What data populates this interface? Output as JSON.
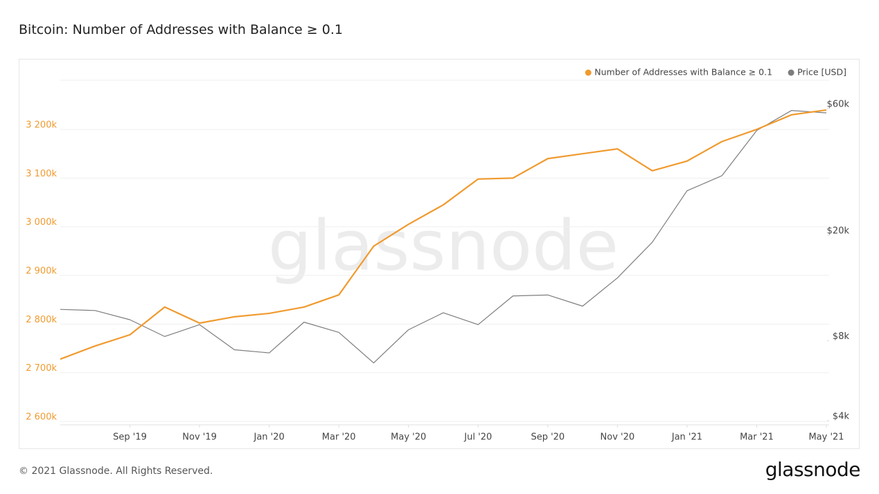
{
  "chart_data": {
    "type": "line",
    "title": "Bitcoin: Number of Addresses with Balance ≥ 0.1",
    "watermark": "glassnode",
    "footer": "© 2021 Glassnode. All Rights Reserved.",
    "logo": "glassnode",
    "x": [
      "2019-07",
      "2019-08",
      "2019-09",
      "2019-10",
      "2019-11",
      "2019-12",
      "2020-01",
      "2020-02",
      "2020-03",
      "2020-04",
      "2020-05",
      "2020-06",
      "2020-07",
      "2020-08",
      "2020-09",
      "2020-10",
      "2020-11",
      "2020-12",
      "2021-01",
      "2021-02",
      "2021-03",
      "2021-04",
      "2021-05"
    ],
    "xlim": [
      "2019-07",
      "2021-05"
    ],
    "xticks": [
      {
        "value": "2019-09",
        "label": "Sep '19"
      },
      {
        "value": "2019-11",
        "label": "Nov '19"
      },
      {
        "value": "2020-01",
        "label": "Jan '20"
      },
      {
        "value": "2020-03",
        "label": "Mar '20"
      },
      {
        "value": "2020-05",
        "label": "May '20"
      },
      {
        "value": "2020-07",
        "label": "Jul '20"
      },
      {
        "value": "2020-09",
        "label": "Sep '20"
      },
      {
        "value": "2020-11",
        "label": "Nov '20"
      },
      {
        "value": "2021-01",
        "label": "Jan '21"
      },
      {
        "value": "2021-03",
        "label": "Mar '21"
      },
      {
        "value": "2021-05",
        "label": "May '21"
      }
    ],
    "series": [
      {
        "name": "Number of Addresses with Balance ≥ 0.1",
        "color": "#f09a2e",
        "values": [
          2728000,
          2755000,
          2778000,
          2835000,
          2802000,
          2815000,
          2822000,
          2835000,
          2860000,
          2960000,
          3005000,
          3045000,
          3098000,
          3100000,
          3140000,
          3150000,
          3160000,
          3115000,
          3135000,
          3175000,
          3200000,
          3230000,
          3240000
        ]
      },
      {
        "name": "Price [USD]",
        "color": "#7d7d7d",
        "axis": "y2",
        "values": [
          10500,
          10400,
          9600,
          8300,
          9200,
          7400,
          7200,
          9400,
          8600,
          6600,
          8800,
          10200,
          9200,
          11800,
          11900,
          10800,
          13800,
          18800,
          29400,
          33500,
          49600,
          59000,
          57800
        ]
      }
    ],
    "ylim": [
      2593000,
      3301000
    ],
    "yticks": [
      {
        "value": 2600000,
        "label": "2 600k"
      },
      {
        "value": 2700000,
        "label": "2 700k"
      },
      {
        "value": 2800000,
        "label": "2 800k"
      },
      {
        "value": 2900000,
        "label": "2 900k"
      },
      {
        "value": 3000000,
        "label": "3 000k"
      },
      {
        "value": 3100000,
        "label": "3 100k"
      },
      {
        "value": 3200000,
        "label": "3 200k"
      }
    ],
    "y2lim": [
      3857,
      76700
    ],
    "y2log": true,
    "y2ticks": [
      {
        "value": 4000,
        "label": "$4k"
      },
      {
        "value": 8000,
        "label": "$8k"
      },
      {
        "value": 20000,
        "label": "$20k"
      },
      {
        "value": 60000,
        "label": "$60k"
      }
    ],
    "grid": true,
    "legend": "top-right"
  }
}
